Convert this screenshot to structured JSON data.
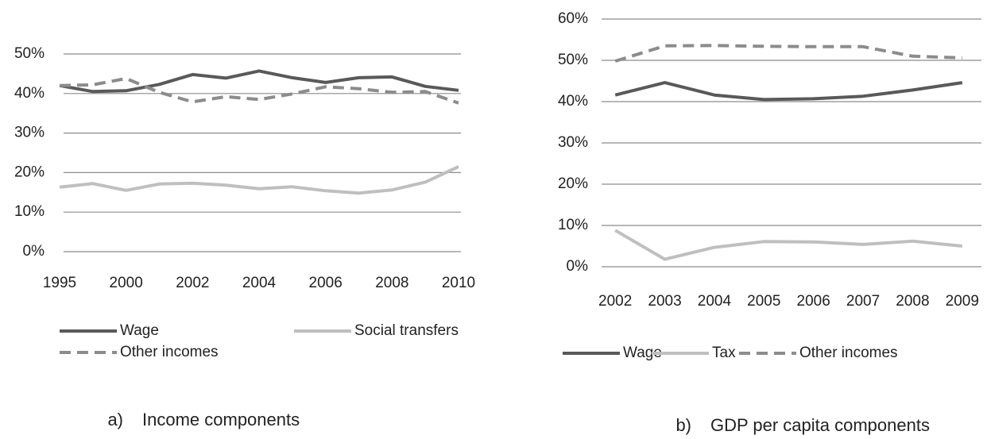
{
  "chart_data": [
    {
      "type": "line",
      "caption": {
        "label": "a)",
        "text": "Income components"
      },
      "categories": [
        "1995",
        null,
        "2000",
        null,
        "2002",
        null,
        "2004",
        null,
        "2006",
        null,
        "2008",
        null,
        "2010"
      ],
      "series": [
        {
          "name": "Wage",
          "color": "#595959",
          "dashed": false,
          "values": [
            42,
            40.5,
            40.7,
            42.3,
            44.8,
            43.9,
            45.7,
            44,
            42.8,
            44,
            44.2,
            41.8,
            40.8
          ]
        },
        {
          "name": "Social transfers",
          "color": "#bfbfbf",
          "dashed": false,
          "values": [
            16.3,
            17.2,
            15.5,
            17.1,
            17.3,
            16.8,
            15.9,
            16.4,
            15.4,
            14.8,
            15.6,
            17.6,
            21.5
          ]
        },
        {
          "name": "Other incomes",
          "color": "#8c8c8c",
          "dashed": true,
          "values": [
            42,
            42.2,
            43.8,
            40.3,
            37.9,
            39.2,
            38.5,
            39.9,
            41.7,
            41.2,
            40.3,
            40.5,
            37.6
          ]
        }
      ],
      "ylim": [
        0,
        50
      ],
      "yticks": [
        {
          "value": 0,
          "label": "0%"
        },
        {
          "value": 10,
          "label": "10%"
        },
        {
          "value": 20,
          "label": "20%"
        },
        {
          "value": 30,
          "label": "30%"
        },
        {
          "value": 40,
          "label": "40%"
        },
        {
          "value": 50,
          "label": "50%"
        }
      ],
      "grid": true
    },
    {
      "type": "line",
      "caption": {
        "label": "b)",
        "text": "GDP per capita components"
      },
      "categories": [
        "2002",
        "2003",
        "2004",
        "2005",
        "2006",
        "2007",
        "2008",
        "2009"
      ],
      "series": [
        {
          "name": "Wage",
          "color": "#595959",
          "dashed": false,
          "values": [
            41.6,
            44.6,
            41.6,
            40.5,
            40.7,
            41.3,
            42.8,
            44.6
          ]
        },
        {
          "name": "Tax",
          "color": "#bfbfbf",
          "dashed": false,
          "values": [
            8.8,
            1.8,
            4.7,
            6.1,
            6.0,
            5.4,
            6.2,
            5.0
          ]
        },
        {
          "name": "Other incomes",
          "color": "#8c8c8c",
          "dashed": true,
          "values": [
            49.8,
            53.5,
            53.6,
            53.4,
            53.3,
            53.3,
            51,
            50.6
          ]
        }
      ],
      "ylim": [
        0,
        60
      ],
      "yticks": [
        {
          "value": 0,
          "label": "0%"
        },
        {
          "value": 10,
          "label": "10%"
        },
        {
          "value": 20,
          "label": "20%"
        },
        {
          "value": 30,
          "label": "30%"
        },
        {
          "value": 40,
          "label": "40%"
        },
        {
          "value": 50,
          "label": "50%"
        },
        {
          "value": 60,
          "label": "60%"
        }
      ],
      "grid": true
    }
  ]
}
